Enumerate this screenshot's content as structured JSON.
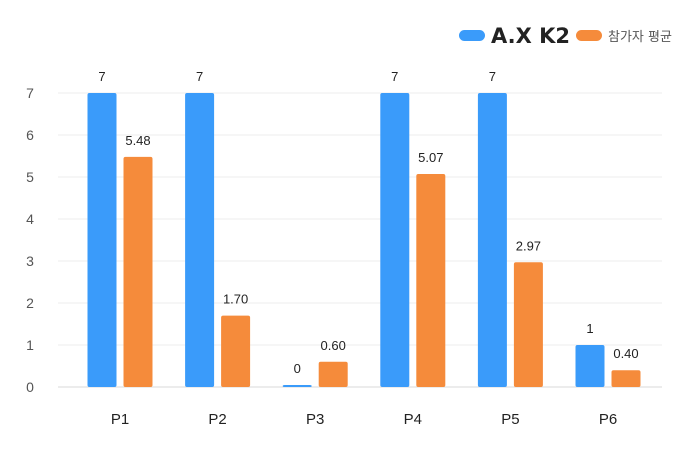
{
  "chart_data": {
    "type": "bar",
    "categories": [
      "P1",
      "P2",
      "P3",
      "P4",
      "P5",
      "P6"
    ],
    "series": [
      {
        "name": "A.X K2",
        "color": "#3a9bfa",
        "values": [
          7,
          7,
          0,
          7,
          7,
          1
        ],
        "labels": [
          "7",
          "7",
          "0",
          "7",
          "7",
          "1"
        ]
      },
      {
        "name": "참가자 평균",
        "color": "#f58b3b",
        "values": [
          5.48,
          1.7,
          0.6,
          5.07,
          2.97,
          0.4
        ],
        "labels": [
          "5.48",
          "1.70",
          "0.60",
          "5.07",
          "2.97",
          "0.40"
        ]
      }
    ],
    "yticks": [
      "0",
      "1",
      "2",
      "3",
      "4",
      "5",
      "6",
      "7"
    ],
    "ylim": [
      0,
      7
    ],
    "grid": true,
    "legend_position": "top-right"
  }
}
